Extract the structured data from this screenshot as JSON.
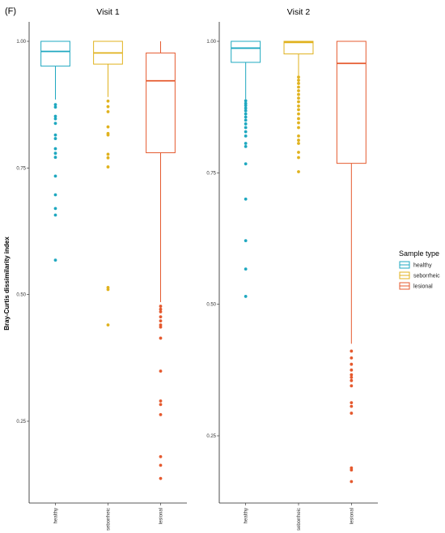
{
  "panel_label": "(F)",
  "colors": {
    "healthy": "#1fa8c0",
    "seborrheic": "#e0b21e",
    "lesional": "#e55a2f",
    "axis": "#222222"
  },
  "chart_data": {
    "type": "box",
    "ylabel": "Bray-Curtis dissimilarity index",
    "categories": [
      "healthy",
      "seborrheic",
      "lesional"
    ],
    "legend": {
      "title": "Sample type",
      "position": "right",
      "entries": [
        "healthy",
        "seborrheic",
        "lesional"
      ]
    },
    "grid": false,
    "facets": [
      {
        "title": "Visit 1",
        "ylim": [
          0.12,
          1.0
        ],
        "yticks": [
          0.25,
          0.5,
          0.75,
          1.0
        ],
        "ytick_labels": [
          "0.25",
          "0.50",
          "0.75",
          "1.00"
        ],
        "boxes": [
          {
            "category": "healthy",
            "whisker_low": 0.885,
            "q1": 0.951,
            "median": 0.98,
            "q3": 1.0,
            "whisker_high": 1.0,
            "outliers": [
              0.875,
              0.87,
              0.852,
              0.847,
              0.838,
              0.815,
              0.808,
              0.788,
              0.779,
              0.771,
              0.734,
              0.697,
              0.67,
              0.657,
              0.568
            ]
          },
          {
            "category": "seborrheic",
            "whisker_low": 0.89,
            "q1": 0.955,
            "median": 0.977,
            "q3": 1.0,
            "whisker_high": 1.0,
            "outliers": [
              0.882,
              0.871,
              0.861,
              0.831,
              0.818,
              0.815,
              0.777,
              0.77,
              0.752,
              0.514,
              0.51,
              0.44
            ]
          },
          {
            "category": "lesional",
            "whisker_low": 0.485,
            "q1": 0.78,
            "median": 0.922,
            "q3": 0.977,
            "whisker_high": 1.0,
            "outliers": [
              0.477,
              0.471,
              0.466,
              0.456,
              0.448,
              0.44,
              0.436,
              0.414,
              0.349,
              0.29,
              0.283,
              0.263,
              0.18,
              0.163,
              0.137
            ]
          }
        ]
      },
      {
        "title": "Visit 2",
        "ylim": [
          0.14,
          1.0
        ],
        "yticks": [
          0.25,
          0.5,
          0.75,
          1.0
        ],
        "ytick_labels": [
          "0.25",
          "0.50",
          "0.75",
          "1.00"
        ],
        "boxes": [
          {
            "category": "healthy",
            "whisker_low": 0.89,
            "q1": 0.96,
            "median": 0.987,
            "q3": 1.0,
            "whisker_high": 1.0,
            "outliers": [
              0.887,
              0.882,
              0.878,
              0.873,
              0.868,
              0.862,
              0.856,
              0.85,
              0.843,
              0.836,
              0.828,
              0.82,
              0.806,
              0.8,
              0.767,
              0.7,
              0.621,
              0.567,
              0.515
            ]
          },
          {
            "category": "seborrheic",
            "whisker_low": 0.935,
            "q1": 0.976,
            "median": 0.998,
            "q3": 1.0,
            "whisker_high": 1.0,
            "outliers": [
              0.932,
              0.926,
              0.92,
              0.913,
              0.906,
              0.899,
              0.892,
              0.885,
              0.877,
              0.87,
              0.862,
              0.853,
              0.845,
              0.836,
              0.82,
              0.812,
              0.806,
              0.789,
              0.779,
              0.752
            ]
          },
          {
            "category": "lesional",
            "whisker_low": 0.425,
            "q1": 0.768,
            "median": 0.958,
            "q3": 1.0,
            "whisker_high": 1.0,
            "outliers": [
              0.411,
              0.398,
              0.386,
              0.375,
              0.366,
              0.361,
              0.355,
              0.345,
              0.313,
              0.306,
              0.293,
              0.189,
              0.185,
              0.163
            ]
          }
        ]
      }
    ]
  }
}
